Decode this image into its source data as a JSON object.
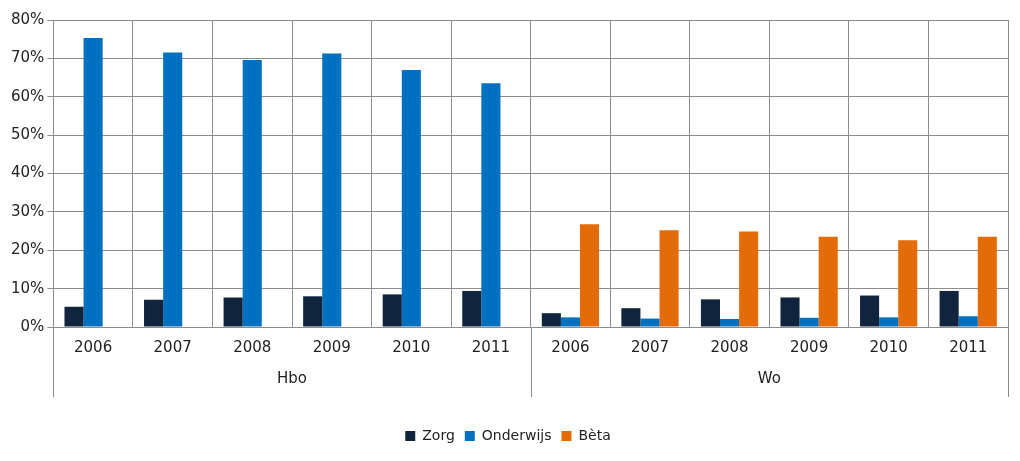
{
  "chart_data": {
    "type": "bar",
    "categories": [
      "2006",
      "2007",
      "2008",
      "2009",
      "2010",
      "2011",
      "2006",
      "2007",
      "2008",
      "2009",
      "2010",
      "2011"
    ],
    "series": [
      {
        "name": "Zorg",
        "color": "#10243e",
        "values": [
          5.3,
          7.1,
          7.7,
          8.0,
          8.5,
          9.4,
          3.6,
          4.9,
          7.2,
          7.7,
          8.2,
          9.4
        ]
      },
      {
        "name": "Onderwijs",
        "color": "#0070c0",
        "values": [
          75.3,
          71.5,
          69.6,
          71.3,
          67.0,
          63.5,
          2.5,
          2.2,
          2.1,
          2.4,
          2.5,
          2.8
        ]
      },
      {
        "name": "Bèta",
        "color": "#e36c09",
        "values": [
          null,
          null,
          null,
          null,
          null,
          null,
          26.8,
          25.2,
          24.9,
          23.5,
          22.6,
          23.5
        ]
      }
    ],
    "ylim": [
      0,
      80
    ],
    "yticks": [
      {
        "value": 0,
        "label": "0%"
      },
      {
        "value": 10,
        "label": "10%"
      },
      {
        "value": 20,
        "label": "20%"
      },
      {
        "value": 30,
        "label": "30%"
      },
      {
        "value": 40,
        "label": "40%"
      },
      {
        "value": 50,
        "label": "50%"
      },
      {
        "value": 60,
        "label": "60%"
      },
      {
        "value": 70,
        "label": "70%"
      },
      {
        "value": 80,
        "label": "80%"
      }
    ],
    "annotations": [
      "Hbo",
      "Wo"
    ],
    "grid": true,
    "legend": "bottom"
  }
}
